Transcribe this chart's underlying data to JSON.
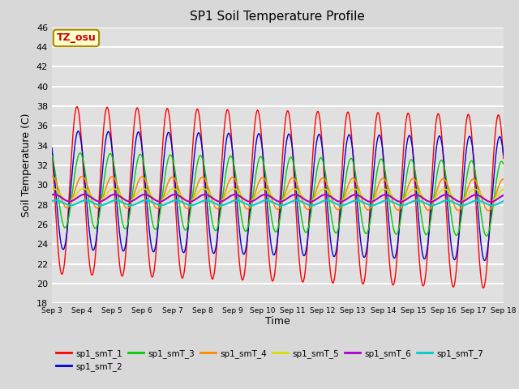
{
  "title": "SP1 Soil Temperature Profile",
  "xlabel": "Time",
  "ylabel": "Soil Temperature (C)",
  "ylim": [
    18,
    46
  ],
  "yticks": [
    18,
    20,
    22,
    24,
    26,
    28,
    30,
    32,
    34,
    36,
    38,
    40,
    42,
    44,
    46
  ],
  "bg_color": "#e0e0e0",
  "grid_color": "white",
  "fig_bg_color": "#d8d8d8",
  "series_colors": [
    "#ff0000",
    "#0000dd",
    "#00cc00",
    "#ff8800",
    "#dddd00",
    "#aa00cc",
    "#00cccc"
  ],
  "series_labels": [
    "sp1_smT_1",
    "sp1_smT_2",
    "sp1_smT_3",
    "sp1_smT_4",
    "sp1_smT_5",
    "sp1_smT_6",
    "sp1_smT_7"
  ],
  "annotation_text": "TZ_osu",
  "annotation_color": "#cc0000",
  "annotation_bg": "#ffffcc",
  "annotation_edge": "#aa8800",
  "n_days": 15,
  "n_points": 1500,
  "amplitudes": [
    8.5,
    6.0,
    3.8,
    1.6,
    0.65,
    0.35,
    0.25
  ],
  "baselines": [
    29.5,
    29.5,
    29.5,
    29.3,
    29.0,
    28.7,
    28.2
  ],
  "phase_shifts_hours": [
    0.0,
    1.0,
    2.5,
    4.0,
    5.0,
    6.0,
    7.0
  ],
  "baseline_trends": [
    -0.08,
    -0.06,
    -0.06,
    -0.02,
    -0.005,
    -0.003,
    -0.001
  ],
  "amp_trends": [
    0.02,
    0.02,
    0.0,
    0.0,
    0.0,
    0.0,
    0.0
  ],
  "xtick_labels": [
    "Sep 3",
    "Sep 4",
    "Sep 5",
    "Sep 6",
    "Sep 7",
    "Sep 8",
    "Sep 9",
    "Sep 10",
    "Sep 11",
    "Sep 12",
    "Sep 13",
    "Sep 14",
    "Sep 15",
    "Sep 16",
    "Sep 17",
    "Sep 18"
  ]
}
